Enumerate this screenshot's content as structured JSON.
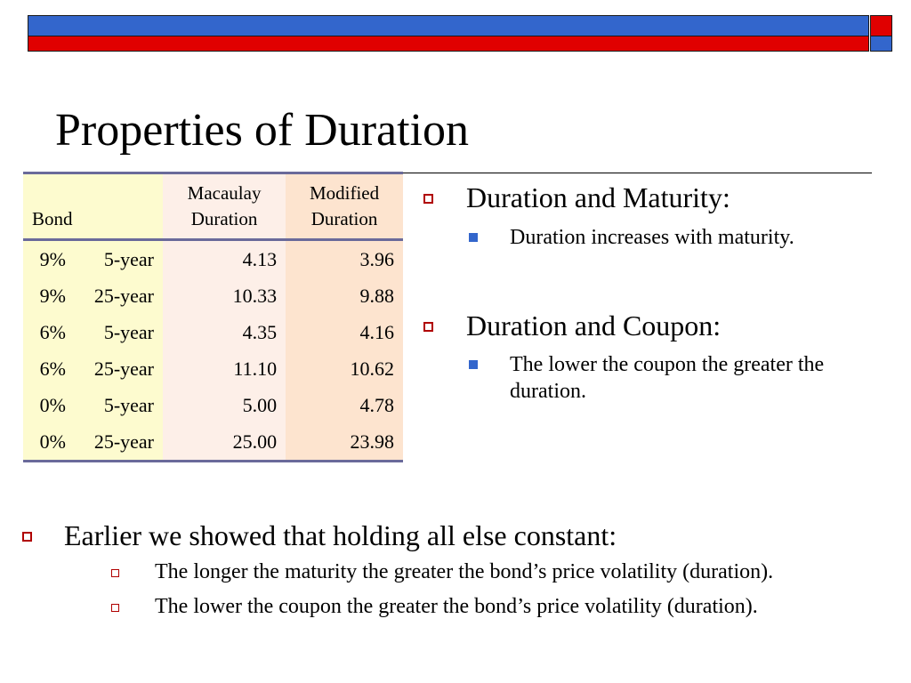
{
  "slide": {
    "title": "Properties of Duration"
  },
  "table": {
    "header": {
      "bond": "Bond",
      "macaulay_line1": "Macaulay",
      "macaulay_line2": "Duration",
      "modified_line1": "Modified",
      "modified_line2": "Duration"
    },
    "rows": [
      {
        "coupon": "9%",
        "maturity": "5-year",
        "macaulay": "4.13",
        "modified": "3.96"
      },
      {
        "coupon": "9%",
        "maturity": "25-year",
        "macaulay": "10.33",
        "modified": "9.88"
      },
      {
        "coupon": "6%",
        "maturity": "5-year",
        "macaulay": "4.35",
        "modified": "4.16"
      },
      {
        "coupon": "6%",
        "maturity": "25-year",
        "macaulay": "11.10",
        "modified": "10.62"
      },
      {
        "coupon": "0%",
        "maturity": "5-year",
        "macaulay": "5.00",
        "modified": "4.78"
      },
      {
        "coupon": "0%",
        "maturity": "25-year",
        "macaulay": "25.00",
        "modified": "23.98"
      }
    ]
  },
  "right_bullets": [
    {
      "heading": "Duration and Maturity:",
      "sub": "Duration increases with maturity."
    },
    {
      "heading": "Duration and Coupon:",
      "sub_line1": "The lower the coupon the greater the",
      "sub_line2": "duration."
    }
  ],
  "bottom": {
    "heading": "Earlier we showed that holding all else constant:",
    "sub": [
      "The longer the maturity the greater the bond’s price volatility (duration).",
      "The lower the coupon the greater the bond’s price volatility (duration)."
    ]
  },
  "colors": {
    "bar_blue": "#3366cc",
    "bar_red": "#e00000",
    "bullet_red": "#b00000",
    "bullet_blue": "#3366cc",
    "table_bond_bg": "#fdfbcf",
    "table_macaulay_bg": "#fdefe8",
    "table_modified_bg": "#fde4cf"
  }
}
